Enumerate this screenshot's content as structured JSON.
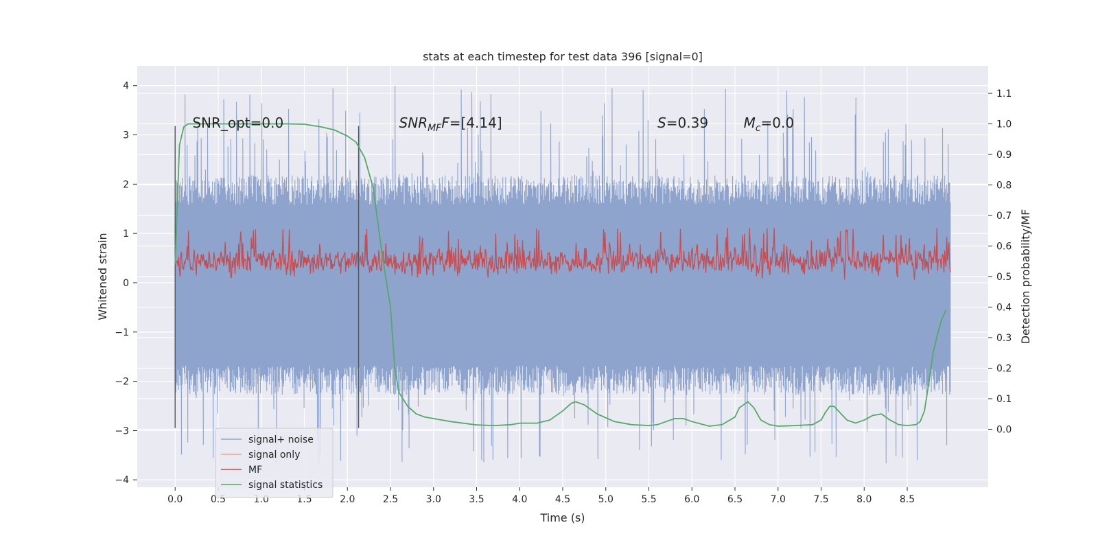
{
  "chart_data": {
    "type": "line",
    "title": "stats at each timestep for test data 396 [signal=0]",
    "xlabel": "Time (s)",
    "ylabel_left": "Whitened strain",
    "ylabel_right": "Detection probability/MF",
    "xlim": [
      -0.44,
      9.44
    ],
    "ylim_left": [
      -4.15,
      4.4
    ],
    "ylim_right": [
      -0.19,
      1.19
    ],
    "x_ticks": [
      0.0,
      0.5,
      1.0,
      1.5,
      2.0,
      2.5,
      3.0,
      3.5,
      4.0,
      4.5,
      5.0,
      5.5,
      6.0,
      6.5,
      7.0,
      7.5,
      8.0,
      8.5
    ],
    "x_tick_labels": [
      "0.0",
      "0.5",
      "1.0",
      "1.5",
      "2.0",
      "2.5",
      "3.0",
      "3.5",
      "4.0",
      "4.5",
      "5.0",
      "5.5",
      "6.0",
      "6.5",
      "7.0",
      "7.5",
      "8.0",
      "8.5"
    ],
    "y_left_ticks": [
      4,
      3,
      2,
      1,
      0,
      -1,
      -2,
      -3,
      -4
    ],
    "y_left_tick_labels": [
      "4",
      "3",
      "2",
      "1",
      "0",
      "−1",
      "−2",
      "−3",
      "−4"
    ],
    "y_right_ticks": [
      1.1,
      1.0,
      0.9,
      0.8,
      0.7,
      0.6,
      0.5,
      0.4,
      0.3,
      0.2,
      0.1,
      0.0
    ],
    "y_right_tick_labels": [
      "1.1",
      "1.0",
      "0.9",
      "0.8",
      "0.7",
      "0.6",
      "0.5",
      "0.4",
      "0.3",
      "0.2",
      "0.1",
      "0.0"
    ],
    "grid": true,
    "legend_position": "lower-left",
    "colors": {
      "background": "#eaeaf2",
      "grid": "#ffffff",
      "noise": "#8fa4cd",
      "signal_only": "#e9a88a",
      "mf": "#c44e52",
      "statistics": "#55a868",
      "markers": "#555555"
    },
    "series": [
      {
        "name": "signal+ noise",
        "axis": "left",
        "duration": 9.0,
        "typical_range": [
          -2.1,
          2.0
        ],
        "peak_range": [
          -3.7,
          4.0
        ]
      },
      {
        "name": "signal only",
        "axis": "left",
        "values": []
      },
      {
        "name": "MF",
        "axis": "right",
        "duration": 9.0,
        "typical_range": [
          0.5,
          0.6
        ],
        "peak_range": [
          0.49,
          0.66
        ]
      },
      {
        "name": "signal statistics",
        "axis": "right",
        "x": [
          0.0,
          0.05,
          0.1,
          0.15,
          0.2,
          0.3,
          0.5,
          0.8,
          1.0,
          1.3,
          1.5,
          1.7,
          1.85,
          2.0,
          2.1,
          2.2,
          2.3,
          2.4,
          2.5,
          2.55,
          2.6,
          2.7,
          2.8,
          2.9,
          3.0,
          3.2,
          3.5,
          3.7,
          3.9,
          4.0,
          4.2,
          4.35,
          4.5,
          4.6,
          4.65,
          4.75,
          4.9,
          5.1,
          5.3,
          5.5,
          5.6,
          5.7,
          5.8,
          5.9,
          6.0,
          6.2,
          6.35,
          6.5,
          6.55,
          6.65,
          6.72,
          6.8,
          6.9,
          7.0,
          7.2,
          7.4,
          7.5,
          7.55,
          7.6,
          7.65,
          7.7,
          7.8,
          7.9,
          8.0,
          8.1,
          8.2,
          8.3,
          8.4,
          8.5,
          8.6,
          8.65,
          8.7,
          8.75,
          8.8,
          8.85,
          8.9,
          8.95
        ],
        "values": [
          0.54,
          0.93,
          0.99,
          1.0,
          1.0,
          1.0,
          1.0,
          1.0,
          1.0,
          1.0,
          0.999,
          0.99,
          0.98,
          0.96,
          0.94,
          0.89,
          0.79,
          0.58,
          0.4,
          0.2,
          0.12,
          0.075,
          0.05,
          0.04,
          0.035,
          0.025,
          0.014,
          0.012,
          0.015,
          0.02,
          0.02,
          0.03,
          0.06,
          0.085,
          0.09,
          0.08,
          0.05,
          0.025,
          0.015,
          0.012,
          0.015,
          0.025,
          0.035,
          0.035,
          0.025,
          0.01,
          0.015,
          0.04,
          0.07,
          0.09,
          0.07,
          0.03,
          0.015,
          0.01,
          0.012,
          0.015,
          0.03,
          0.055,
          0.075,
          0.075,
          0.06,
          0.03,
          0.02,
          0.03,
          0.045,
          0.05,
          0.03,
          0.015,
          0.012,
          0.015,
          0.025,
          0.06,
          0.15,
          0.25,
          0.31,
          0.36,
          0.39
        ]
      }
    ],
    "vertical_markers": [
      {
        "x": 0.0,
        "ymin": -2.95,
        "ymax": 3.18
      },
      {
        "x": 2.13,
        "ymin": -2.95,
        "ymax": 3.18
      }
    ],
    "annotations": [
      {
        "text": "SNR_opt=0.0",
        "x": 0.2,
        "y": 3.15
      },
      {
        "text_main": "SNR",
        "text_sub": "MF",
        "text_rest": "=[4.14]",
        "x": 2.6,
        "y": 3.15
      },
      {
        "text_main": "S",
        "text_rest": "=0.39",
        "x": 5.6,
        "y": 3.15
      },
      {
        "text_main": "M",
        "text_sub": "c",
        "text_rest": "=0.0",
        "x": 6.6,
        "y": 3.15
      }
    ]
  }
}
